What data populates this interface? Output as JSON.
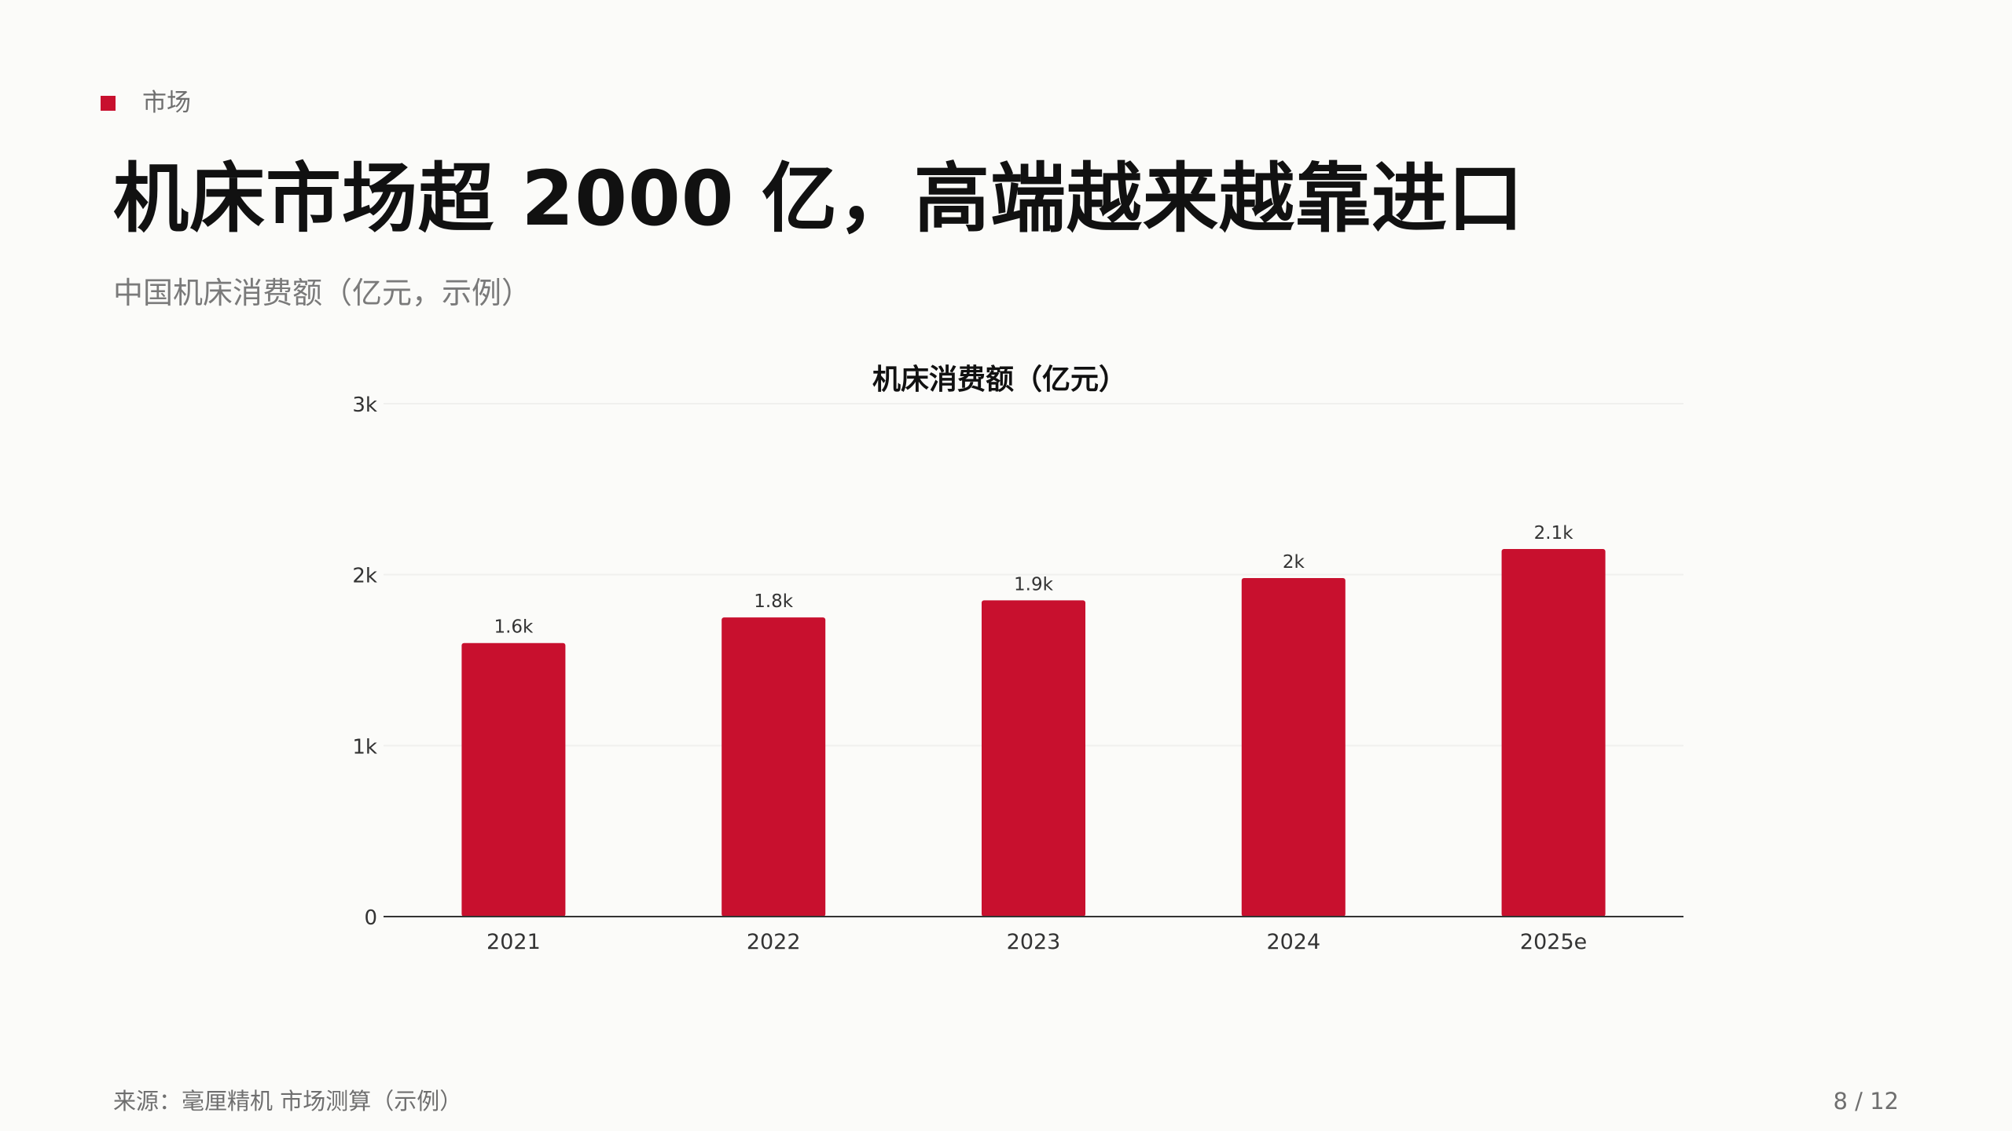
{
  "section": {
    "label": "市场",
    "marker_color": "#c8102e"
  },
  "title": "机床市场超 2000 亿，高端越来越靠进口",
  "subtitle": "中国机床消费额（亿元，示例）",
  "chart_data": {
    "type": "bar",
    "title": "机床消费额（亿元）",
    "categories": [
      "2021",
      "2022",
      "2023",
      "2024",
      "2025e"
    ],
    "values": [
      1600,
      1750,
      1850,
      1980,
      2150
    ],
    "value_labels": [
      "1.6k",
      "1.8k",
      "1.9k",
      "2k",
      "2.1k"
    ],
    "y_ticks": [
      0,
      1000,
      2000,
      3000
    ],
    "y_tick_labels": [
      "0",
      "1k",
      "2k",
      "3k"
    ],
    "ylim": [
      0,
      3000
    ],
    "xlabel": "",
    "ylabel": "",
    "grid": true,
    "bar_color": "#c8102e"
  },
  "footer": {
    "source": "来源：毫厘精机 市场测算（示例）",
    "page": "8 / 12"
  }
}
